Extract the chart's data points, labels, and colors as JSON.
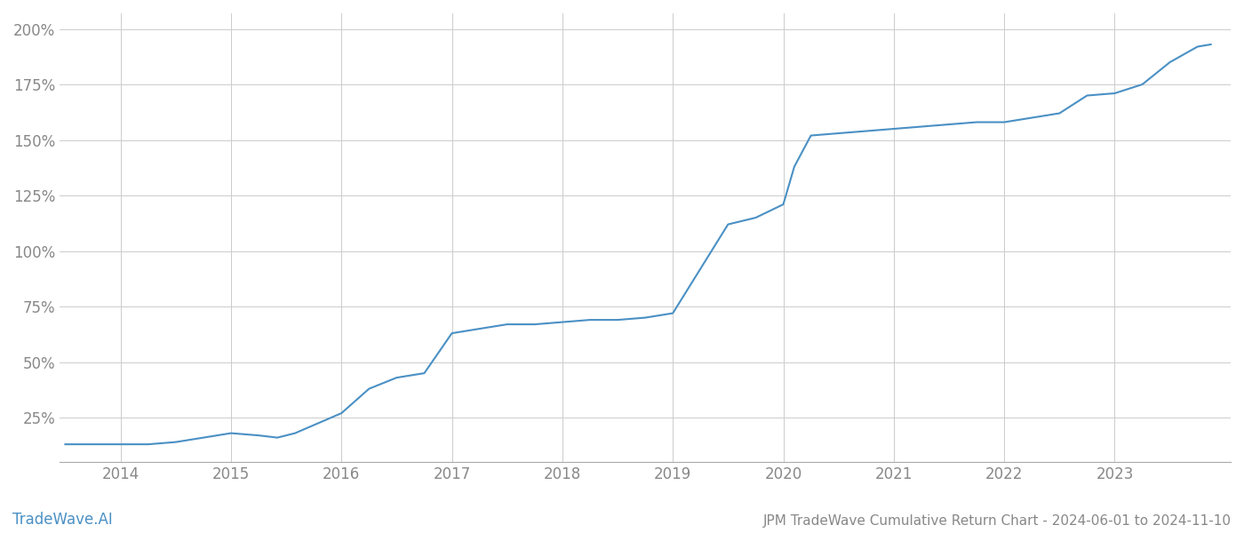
{
  "title": "JPM TradeWave Cumulative Return Chart - 2024-06-01 to 2024-11-10",
  "watermark": "TradeWave.AI",
  "line_color": "#4a90c4",
  "background_color": "#ffffff",
  "grid_color": "#cccccc",
  "x_years": [
    2014,
    2015,
    2016,
    2017,
    2018,
    2019,
    2020,
    2021,
    2022,
    2023
  ],
  "x_data": [
    2013.5,
    2014.0,
    2014.25,
    2014.5,
    2014.75,
    2015.0,
    2015.25,
    2015.42,
    2015.58,
    2016.0,
    2016.25,
    2016.5,
    2016.75,
    2017.0,
    2017.25,
    2017.5,
    2017.75,
    2018.0,
    2018.25,
    2018.5,
    2018.75,
    2019.0,
    2019.25,
    2019.5,
    2019.75,
    2020.0,
    2020.1,
    2020.25,
    2020.5,
    2020.75,
    2021.0,
    2021.25,
    2021.5,
    2021.75,
    2022.0,
    2022.25,
    2022.5,
    2022.75,
    2023.0,
    2023.25,
    2023.5,
    2023.75,
    2023.87
  ],
  "y_data": [
    13,
    13,
    13,
    14,
    16,
    18,
    17,
    16,
    18,
    27,
    38,
    43,
    45,
    63,
    65,
    67,
    67,
    68,
    69,
    69,
    70,
    72,
    92,
    112,
    115,
    121,
    138,
    152,
    153,
    154,
    155,
    156,
    157,
    158,
    158,
    160,
    162,
    170,
    171,
    175,
    185,
    192,
    193
  ],
  "ylim_min": 5,
  "ylim_max": 207,
  "yticks": [
    25,
    50,
    75,
    100,
    125,
    150,
    175,
    200
  ],
  "xlim_min": 2013.45,
  "xlim_max": 2024.05,
  "title_fontsize": 11,
  "watermark_fontsize": 12,
  "tick_color": "#888888",
  "tick_fontsize": 12,
  "line_width": 1.5
}
